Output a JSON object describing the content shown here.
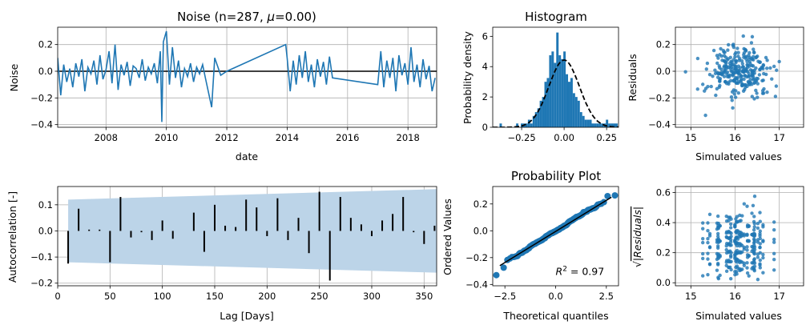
{
  "colors": {
    "series": "#1f77b4",
    "band": "#bcd4e8",
    "black": "#000000",
    "grid": "#b0b0b0"
  },
  "chart_data": [
    {
      "id": "noise",
      "type": "line",
      "title": "Noise (n=287, μ=0.00)",
      "title_parts": {
        "prefix": "Noise (n=287, ",
        "mu": "μ",
        "suffix": "=0.00)"
      },
      "xlabel": "date",
      "ylabel": "Noise",
      "xlim": [
        2006.4,
        2018.95
      ],
      "ylim": [
        -0.42,
        0.33
      ],
      "xticks": [
        2008,
        2010,
        2012,
        2014,
        2016,
        2018
      ],
      "xtick_labels": [
        "2008",
        "2010",
        "2012",
        "2014",
        "2016",
        "2018"
      ],
      "yticks": [
        -0.4,
        -0.2,
        0.0,
        0.2
      ],
      "ytick_labels": [
        "−0.4",
        "−0.2",
        "0.0",
        "0.2"
      ],
      "grid": true,
      "zero_line": 0,
      "segments": [
        {
          "x": [
            2006.4,
            2006.5,
            2006.6,
            2006.7,
            2006.8,
            2006.9,
            2007.0,
            2007.1,
            2007.2,
            2007.3,
            2007.4,
            2007.5,
            2007.6,
            2007.7,
            2007.8,
            2007.9,
            2008.0,
            2008.1,
            2008.2,
            2008.3,
            2008.4,
            2008.5,
            2008.6,
            2008.7,
            2008.8,
            2008.9,
            2009.0,
            2009.1,
            2009.2,
            2009.3,
            2009.4,
            2009.5,
            2009.6,
            2009.7,
            2009.8,
            2009.85,
            2009.9,
            2010.0,
            2010.1,
            2010.2,
            2010.3,
            2010.4,
            2010.5,
            2010.6,
            2010.7,
            2010.8,
            2010.9,
            2011.0,
            2011.1,
            2011.2,
            2011.3,
            2011.5,
            2011.6,
            2011.8,
            2012.0,
            2013.95,
            2014.0,
            2014.1,
            2014.2,
            2014.3,
            2014.4,
            2014.5,
            2014.6,
            2014.7,
            2014.8,
            2014.9,
            2015.0,
            2015.1,
            2015.2,
            2015.3,
            2015.4,
            2015.5,
            2017.0,
            2017.1,
            2017.2,
            2017.3,
            2017.4,
            2017.5,
            2017.6,
            2017.7,
            2017.8,
            2017.9,
            2018.0,
            2018.1,
            2018.2,
            2018.3,
            2018.4,
            2018.5,
            2018.6,
            2018.7,
            2018.8,
            2018.9
          ],
          "y": [
            0.1,
            -0.18,
            0.05,
            -0.08,
            0.02,
            -0.12,
            0.06,
            -0.04,
            0.09,
            -0.15,
            0.03,
            -0.02,
            0.08,
            -0.1,
            0.12,
            -0.06,
            0.01,
            0.15,
            -0.09,
            0.2,
            -0.14,
            0.05,
            -0.03,
            0.07,
            -0.11,
            0.04,
            0.02,
            -0.05,
            0.09,
            -0.07,
            0.03,
            -0.02,
            0.06,
            -0.09,
            0.15,
            -0.38,
            0.22,
            0.3,
            -0.1,
            0.18,
            -0.05,
            0.08,
            -0.12,
            0.02,
            -0.04,
            0.06,
            -0.08,
            0.03,
            -0.02,
            0.05,
            -0.06,
            -0.27,
            0.1,
            -0.03,
            0.0,
            0.2,
            0.1,
            -0.15,
            0.08,
            -0.1,
            0.12,
            -0.05,
            0.15,
            -0.08,
            0.05,
            -0.12,
            0.09,
            -0.04,
            0.07,
            -0.1,
            0.11,
            -0.05,
            -0.1,
            0.15,
            -0.12,
            0.08,
            -0.05,
            0.1,
            -0.15,
            0.12,
            -0.03,
            0.06,
            -0.1,
            0.18,
            -0.08,
            0.05,
            -0.12,
            0.09,
            -0.06,
            0.04,
            -0.15,
            -0.05
          ]
        }
      ]
    },
    {
      "id": "histogram",
      "type": "bar",
      "title": "Histogram",
      "ylabel": "Probability density",
      "xlim": [
        -0.42,
        0.32
      ],
      "ylim": [
        0,
        6.6
      ],
      "xticks": [
        -0.25,
        0.0,
        0.25
      ],
      "xtick_labels": [
        "−0.25",
        "0.00",
        "0.25"
      ],
      "yticks": [
        0,
        2,
        4,
        6
      ],
      "ytick_labels": [
        "0",
        "2",
        "4",
        "6"
      ],
      "bin_width": 0.0139,
      "bin_start": -0.38,
      "values": [
        0.25,
        0,
        0,
        0,
        0,
        0,
        0,
        0.25,
        0,
        0.25,
        0.25,
        0.25,
        0.5,
        0.25,
        0.75,
        1.0,
        1.25,
        1.75,
        2.0,
        3.0,
        3.25,
        4.75,
        5.0,
        4.25,
        6.25,
        4.75,
        4.5,
        5.0,
        3.5,
        3.0,
        3.25,
        2.25,
        2.0,
        1.75,
        1.0,
        0.75,
        0.5,
        0.5,
        0.5,
        0.25,
        0.25,
        0.25,
        0.25,
        0.25,
        0.25,
        0.5,
        0.25,
        0.25,
        0.25,
        0.25
      ],
      "normal_fit": {
        "mu": 0.0,
        "sigma": 0.09,
        "style": "dashed"
      },
      "grid": true
    },
    {
      "id": "residuals-top",
      "type": "scatter",
      "xlabel": "Simulated values",
      "ylabel": "Residuals",
      "xlim": [
        14.65,
        17.55
      ],
      "ylim": [
        -0.42,
        0.33
      ],
      "xticks": [
        15,
        16,
        17
      ],
      "xtick_labels": [
        "15",
        "16",
        "17"
      ],
      "yticks": [
        -0.4,
        -0.2,
        0.0,
        0.2
      ],
      "ytick_labels": [
        "−0.4",
        "−0.2",
        "0.0",
        "0.2"
      ],
      "grid": true,
      "n_points": 287,
      "center_x": 16.1,
      "spread_x": 0.6
    },
    {
      "id": "autocorrelation",
      "type": "bar",
      "xlabel": "Lag [Days]",
      "ylabel": "Autocorrelation [-]",
      "xlim": [
        0,
        362
      ],
      "ylim": [
        -0.21,
        0.17
      ],
      "xticks": [
        0,
        50,
        100,
        150,
        200,
        250,
        300,
        350
      ],
      "xtick_labels": [
        "0",
        "50",
        "100",
        "150",
        "200",
        "250",
        "300",
        "350"
      ],
      "yticks": [
        -0.2,
        -0.1,
        0.0,
        0.1
      ],
      "ytick_labels": [
        "−0.2",
        "−0.1",
        "0.0",
        "0.1"
      ],
      "grid": true,
      "lags": [
        10,
        20,
        30,
        40,
        50,
        60,
        70,
        80,
        90,
        100,
        110,
        120,
        130,
        140,
        150,
        160,
        170,
        180,
        190,
        200,
        210,
        220,
        230,
        240,
        250,
        260,
        270,
        280,
        290,
        300,
        310,
        320,
        330,
        340,
        350,
        360
      ],
      "values": [
        -0.125,
        0.085,
        0.005,
        0.005,
        -0.12,
        0.13,
        -0.025,
        -0.005,
        -0.035,
        0.04,
        -0.03,
        0.0,
        0.07,
        -0.08,
        0.1,
        0.02,
        0.015,
        0.12,
        0.09,
        -0.02,
        0.125,
        -0.035,
        0.05,
        -0.085,
        0.15,
        -0.19,
        0.13,
        0.05,
        0.025,
        -0.02,
        0.04,
        0.065,
        0.13,
        -0.005,
        -0.05,
        0.02
      ],
      "confidence_band": {
        "lag": [
          10,
          362
        ],
        "upper": [
          0.12,
          0.16
        ],
        "lower": [
          -0.12,
          -0.16
        ]
      }
    },
    {
      "id": "probability-plot",
      "type": "scatter",
      "title": "Probability Plot",
      "xlabel": "Theoretical quantiles",
      "ylabel": "Ordered Values",
      "xlim": [
        -3.1,
        3.1
      ],
      "ylim": [
        -0.41,
        0.33
      ],
      "xticks": [
        -2.5,
        0.0,
        2.5
      ],
      "xtick_labels": [
        "−2.5",
        "0.0",
        "2.5"
      ],
      "yticks": [
        -0.4,
        -0.2,
        0.0,
        0.2
      ],
      "ytick_labels": [
        "−0.4",
        "−0.2",
        "0.0",
        "0.2"
      ],
      "fit_line": {
        "x": [
          -2.75,
          2.75
        ],
        "y": [
          -0.26,
          0.25
        ]
      },
      "annotation": {
        "text_prefix": "R",
        "text_sup": "2",
        "text_suffix": " = 0.97",
        "x": 0.0,
        "y": -0.33
      },
      "n_points": 287,
      "slope": 0.092
    },
    {
      "id": "sqrt-residuals",
      "type": "scatter",
      "xlabel": "Simulated values",
      "ylabel": "√|Residuals|",
      "ylabel_parts": {
        "root": "√",
        "inner": "|Residuals|"
      },
      "xlim": [
        14.65,
        17.55
      ],
      "ylim": [
        -0.02,
        0.64
      ],
      "xticks": [
        15,
        16,
        17
      ],
      "xtick_labels": [
        "15",
        "16",
        "17"
      ],
      "yticks": [
        0.0,
        0.2,
        0.4,
        0.6
      ],
      "ytick_labels": [
        "0.0",
        "0.2",
        "0.4",
        "0.6"
      ],
      "grid": true,
      "n_points": 287
    }
  ]
}
